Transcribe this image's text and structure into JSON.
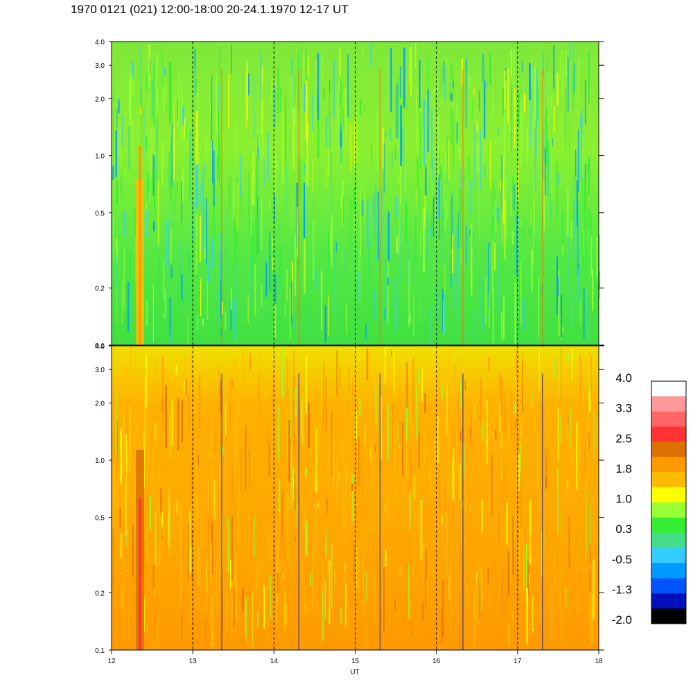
{
  "title": "1970 0121 (021) 12:00-18:00 20-24.1.1970  12-17 UT",
  "chart_data": [
    {
      "type": "heatmap",
      "panel": "upper",
      "x": [
        12,
        13,
        14,
        15,
        16,
        17,
        18
      ],
      "xlim": [
        12,
        18
      ],
      "y_ticks": [
        "0.1",
        "0.2",
        "0.5",
        "1.0",
        "2.0",
        "3.0",
        "4.0"
      ],
      "y_tick_values": [
        0.1,
        0.2,
        0.5,
        1.0,
        2.0,
        3.0,
        4.0
      ],
      "ylim": [
        0.1,
        4.0
      ],
      "y_scale": "log",
      "dominant_values": "0.3 to 1.0 (green / yellow-green)",
      "grid": "dashed vertical lines at each hour"
    },
    {
      "type": "heatmap",
      "panel": "lower",
      "x": [
        12,
        13,
        14,
        15,
        16,
        17,
        18
      ],
      "xlim": [
        12,
        18
      ],
      "xlabel": "UT",
      "x_ticks": [
        "12",
        "13",
        "14",
        "15",
        "16",
        "17",
        "18"
      ],
      "y_ticks": [
        "0.1",
        "0.2",
        "0.5",
        "1.0",
        "2.0",
        "3.0",
        "4.0"
      ],
      "y_tick_values": [
        0.1,
        0.2,
        0.5,
        1.0,
        2.0,
        3.0,
        4.0
      ],
      "ylim": [
        0.1,
        4.0
      ],
      "y_scale": "log",
      "dominant_values": "1.0 to 2.5 (yellow / orange)",
      "grid": "dashed vertical lines at each hour"
    }
  ],
  "colorbar": {
    "labels": [
      "4.0",
      "3.3",
      "2.5",
      "1.8",
      "1.0",
      "0.3",
      "-0.5",
      "-1.3",
      "-2.0"
    ],
    "colors": [
      "#ffffff",
      "#ff9999",
      "#ff6666",
      "#ff3333",
      "#dd7000",
      "#ff9900",
      "#ffbb00",
      "#ffff00",
      "#99ff33",
      "#33ee33",
      "#44dd88",
      "#33ccff",
      "#0099ff",
      "#0055ff",
      "#0011bb",
      "#000000"
    ]
  }
}
